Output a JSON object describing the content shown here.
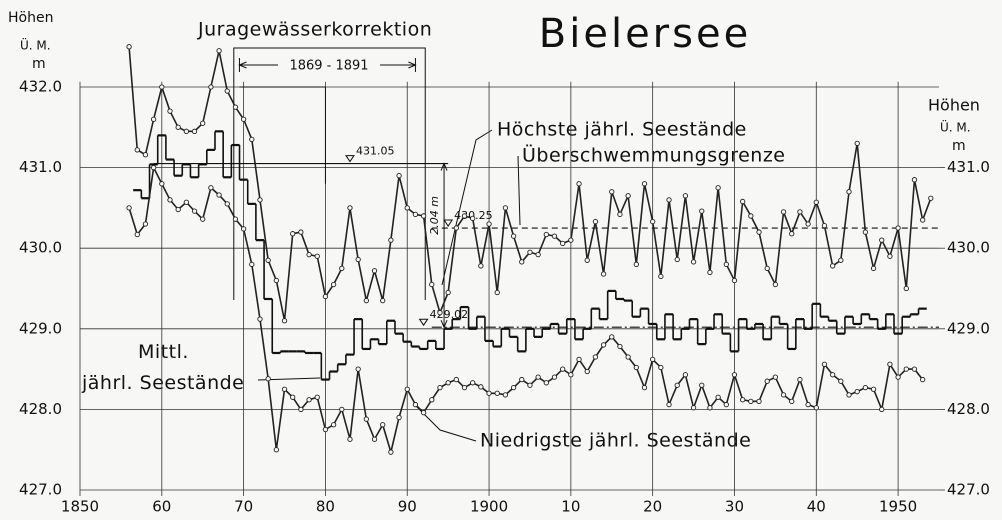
{
  "chart_data": {
    "type": "line",
    "title": "Bielersee",
    "y_label": [
      "Höhen",
      "Ü. M.",
      "m"
    ],
    "y2_label": [
      "Höhen",
      "Ü. M.",
      "m"
    ],
    "xlim": [
      1850,
      1955
    ],
    "ylim": [
      427.0,
      432.5
    ],
    "y2lim": [
      427.0,
      432.5
    ],
    "xticks": [
      {
        "value": 1850,
        "label": "1850"
      },
      {
        "value": 1860,
        "label": "60"
      },
      {
        "value": 1870,
        "label": "70"
      },
      {
        "value": 1880,
        "label": "80"
      },
      {
        "value": 1890,
        "label": "90"
      },
      {
        "value": 1900,
        "label": "1900"
      },
      {
        "value": 1910,
        "label": "10"
      },
      {
        "value": 1920,
        "label": "20"
      },
      {
        "value": 1930,
        "label": "30"
      },
      {
        "value": 1940,
        "label": "40"
      },
      {
        "value": 1950,
        "label": "1950"
      }
    ],
    "yticks": [
      {
        "value": 427,
        "label": "427.0"
      },
      {
        "value": 428,
        "label": "428.0"
      },
      {
        "value": 429,
        "label": "429.0"
      },
      {
        "value": 430,
        "label": "430.0"
      },
      {
        "value": 431,
        "label": "431.0"
      },
      {
        "value": 432,
        "label": "432.0"
      }
    ],
    "y2ticks": [
      {
        "value": 427,
        "label": "427.0"
      },
      {
        "value": 428,
        "label": "428.0"
      },
      {
        "value": 429,
        "label": "429.0"
      },
      {
        "value": 430,
        "label": "430.0"
      },
      {
        "value": 431,
        "label": "431.0"
      }
    ],
    "grid": true,
    "x": [
      1856,
      1857,
      1858,
      1859,
      1860,
      1861,
      1862,
      1863,
      1864,
      1865,
      1866,
      1867,
      1868,
      1869,
      1870,
      1871,
      1872,
      1873,
      1874,
      1875,
      1876,
      1877,
      1878,
      1879,
      1880,
      1881,
      1882,
      1883,
      1884,
      1885,
      1886,
      1887,
      1888,
      1889,
      1890,
      1891,
      1892,
      1893,
      1894,
      1895,
      1896,
      1897,
      1898,
      1899,
      1900,
      1901,
      1902,
      1903,
      1904,
      1905,
      1906,
      1907,
      1908,
      1909,
      1910,
      1911,
      1912,
      1913,
      1914,
      1915,
      1916,
      1917,
      1918,
      1919,
      1920,
      1921,
      1922,
      1923,
      1924,
      1925,
      1926,
      1927,
      1928,
      1929,
      1930,
      1931,
      1932,
      1933,
      1934,
      1935,
      1936,
      1937,
      1938,
      1939,
      1940,
      1941,
      1942,
      1943,
      1944,
      1945,
      1946,
      1947,
      1948,
      1949,
      1950,
      1951,
      1952,
      1953,
      1954
    ],
    "series": [
      {
        "name": "Höchste jährl. Seestände",
        "color": "#222222",
        "style": "markers",
        "values": [
          432.5,
          431.22,
          431.16,
          431.6,
          432.0,
          431.7,
          431.5,
          431.45,
          431.45,
          431.55,
          432.0,
          432.45,
          431.95,
          431.75,
          431.6,
          431.35,
          430.6,
          429.85,
          429.6,
          429.1,
          430.18,
          430.2,
          429.92,
          429.9,
          429.4,
          429.55,
          429.75,
          430.5,
          429.86,
          429.35,
          429.72,
          429.35,
          430.1,
          430.9,
          430.5,
          430.42,
          430.4,
          429.55,
          429.2,
          429.45,
          430.25,
          430.4,
          430.37,
          429.78,
          430.3,
          429.45,
          430.5,
          430.15,
          429.83,
          429.95,
          429.92,
          430.17,
          430.15,
          430.06,
          430.1,
          430.8,
          429.85,
          430.33,
          429.68,
          430.7,
          430.42,
          430.65,
          429.8,
          430.8,
          430.33,
          429.65,
          430.6,
          429.86,
          430.65,
          429.83,
          430.46,
          429.7,
          430.75,
          429.8,
          429.6,
          430.58,
          430.4,
          430.2,
          429.75,
          429.55,
          430.45,
          430.18,
          430.45,
          430.3,
          430.57,
          430.28,
          429.78,
          429.85,
          430.7,
          431.3,
          430.2,
          429.75,
          430.1,
          429.9,
          430.25,
          429.5,
          430.85,
          430.35,
          430.62
        ]
      },
      {
        "name": "Mittl. jährl. Seestände",
        "color": "#111111",
        "style": "step",
        "values": [
          null,
          430.72,
          430.62,
          431.04,
          431.4,
          431.1,
          430.9,
          431.04,
          430.88,
          431.04,
          431.22,
          431.45,
          430.88,
          431.28,
          430.85,
          430.55,
          430.1,
          429.37,
          428.7,
          428.72,
          428.72,
          428.72,
          428.7,
          428.7,
          428.37,
          428.47,
          428.56,
          428.68,
          429.12,
          428.75,
          428.87,
          428.81,
          429.1,
          428.94,
          428.84,
          428.78,
          428.75,
          428.85,
          428.75,
          429.0,
          429.12,
          429.27,
          429.0,
          429.15,
          428.85,
          428.78,
          429.0,
          428.9,
          428.72,
          429.0,
          428.9,
          429.0,
          429.06,
          428.94,
          429.12,
          428.87,
          429.0,
          429.25,
          429.12,
          429.47,
          429.37,
          429.35,
          429.15,
          429.25,
          429.06,
          428.87,
          429.18,
          428.87,
          429.0,
          429.12,
          428.81,
          429.0,
          429.18,
          428.94,
          428.72,
          429.12,
          429.0,
          429.06,
          428.87,
          429.15,
          429.06,
          428.75,
          429.12,
          429.0,
          429.31,
          429.15,
          429.1,
          428.94,
          429.15,
          429.06,
          429.18,
          429.12,
          429.0,
          429.18,
          428.94,
          429.15,
          429.18,
          429.25,
          null
        ]
      },
      {
        "name": "Niedrigste jährl. Seestände",
        "color": "#222222",
        "style": "markers",
        "values": [
          430.5,
          430.17,
          430.3,
          431.0,
          430.8,
          430.6,
          430.48,
          430.57,
          430.46,
          430.36,
          430.75,
          430.66,
          430.55,
          430.36,
          430.24,
          429.8,
          429.12,
          428.38,
          427.5,
          428.25,
          428.15,
          428.0,
          428.12,
          428.15,
          427.75,
          427.81,
          428.0,
          427.63,
          428.5,
          427.88,
          427.63,
          427.81,
          427.47,
          427.9,
          428.25,
          428.06,
          427.96,
          428.12,
          428.27,
          428.33,
          428.37,
          428.27,
          428.33,
          428.28,
          428.2,
          428.2,
          428.18,
          428.27,
          428.37,
          428.3,
          428.4,
          428.33,
          428.4,
          428.5,
          428.43,
          428.62,
          428.47,
          428.65,
          428.8,
          428.9,
          428.78,
          428.65,
          428.52,
          428.27,
          428.62,
          428.52,
          428.06,
          428.3,
          428.43,
          428.02,
          428.3,
          428.02,
          428.15,
          428.06,
          428.43,
          428.12,
          428.1,
          428.1,
          428.35,
          428.4,
          428.18,
          428.1,
          428.37,
          428.06,
          428.02,
          428.56,
          428.43,
          428.35,
          428.18,
          428.22,
          428.27,
          428.25,
          428.0,
          428.56,
          428.4,
          428.5,
          428.5,
          428.37,
          null
        ]
      }
    ],
    "reference_lines": [
      {
        "value": 431.05,
        "xrange": [
          1859,
          1895
        ],
        "style": "solid"
      },
      {
        "value": 430.25,
        "xrange": [
          1893,
          1955
        ],
        "style": "dashed",
        "name": "Überschwemmungsgrenze"
      },
      {
        "value": 429.02,
        "xrange": [
          1893,
          1955
        ],
        "style": "dashdot"
      }
    ],
    "difference": {
      "label": "2.04 m",
      "x": 1894.5
    },
    "correction": {
      "label": "Juragewässerkorrektion",
      "period": [
        1869,
        1891
      ],
      "period_label": "1869 - 1891"
    }
  }
}
